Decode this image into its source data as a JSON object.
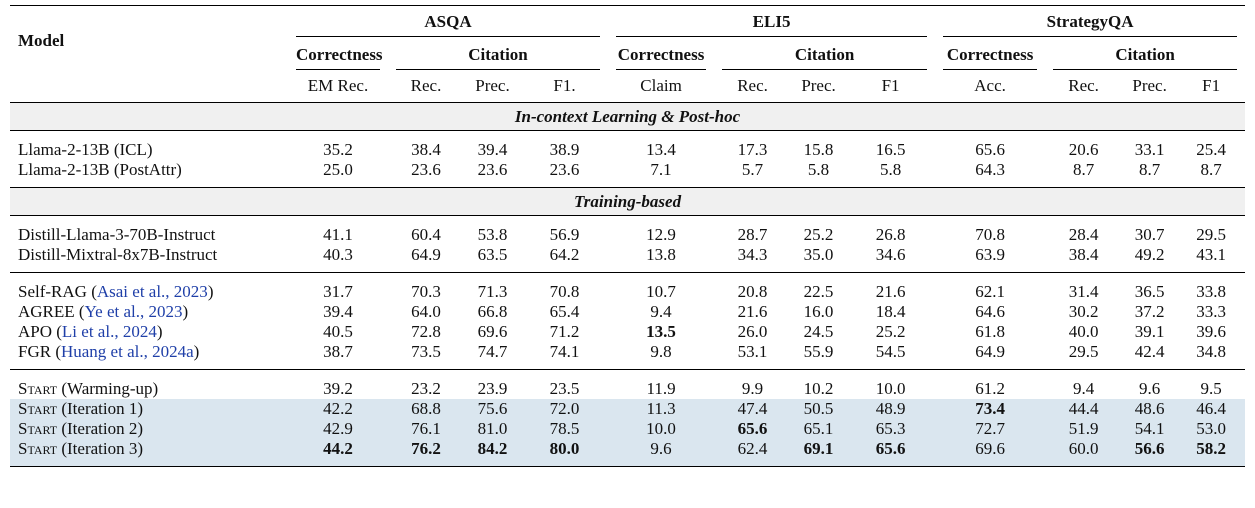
{
  "table": {
    "header": {
      "model": "Model",
      "datasets": [
        {
          "name": "ASQA",
          "correctness": "Correctness",
          "citation": "Citation",
          "metrics": [
            "EM Rec.",
            "Rec.",
            "Prec.",
            "F1."
          ]
        },
        {
          "name": "ELI5",
          "correctness": "Correctness",
          "citation": "Citation",
          "metrics": [
            "Claim",
            "Rec.",
            "Prec.",
            "F1"
          ]
        },
        {
          "name": "StrategyQA",
          "correctness": "Correctness",
          "citation": "Citation",
          "metrics": [
            "Acc.",
            "Rec.",
            "Prec.",
            "F1"
          ]
        }
      ]
    },
    "sections": [
      {
        "title": "In-context Learning & Post-hoc",
        "groups": [
          {
            "rows": [
              {
                "model": [
                  {
                    "text": "Llama-2-13B (ICL)"
                  }
                ],
                "values": [
                  "35.2",
                  "38.4",
                  "39.4",
                  "38.9",
                  "13.4",
                  "17.3",
                  "15.8",
                  "16.5",
                  "65.6",
                  "20.6",
                  "33.1",
                  "25.4"
                ],
                "bold": [],
                "highlight": false
              },
              {
                "model": [
                  {
                    "text": "Llama-2-13B (PostAttr)"
                  }
                ],
                "values": [
                  "25.0",
                  "23.6",
                  "23.6",
                  "23.6",
                  "7.1",
                  "5.7",
                  "5.8",
                  "5.8",
                  "64.3",
                  "8.7",
                  "8.7",
                  "8.7"
                ],
                "bold": [],
                "highlight": false
              }
            ]
          }
        ]
      },
      {
        "title": "Training-based",
        "groups": [
          {
            "rows": [
              {
                "model": [
                  {
                    "text": "Distill-Llama-3-70B-Instruct"
                  }
                ],
                "values": [
                  "41.1",
                  "60.4",
                  "53.8",
                  "56.9",
                  "12.9",
                  "28.7",
                  "25.2",
                  "26.8",
                  "70.8",
                  "28.4",
                  "30.7",
                  "29.5"
                ],
                "bold": [],
                "highlight": false
              },
              {
                "model": [
                  {
                    "text": "Distill-Mixtral-8x7B-Instruct"
                  }
                ],
                "values": [
                  "40.3",
                  "64.9",
                  "63.5",
                  "64.2",
                  "13.8",
                  "34.3",
                  "35.0",
                  "34.6",
                  "63.9",
                  "38.4",
                  "49.2",
                  "43.1"
                ],
                "bold": [],
                "highlight": false
              }
            ]
          },
          {
            "rows": [
              {
                "model": [
                  {
                    "text": "Self-RAG ("
                  },
                  {
                    "text": "Asai et al., 2023",
                    "style": "cite"
                  },
                  {
                    "text": ")"
                  }
                ],
                "values": [
                  "31.7",
                  "70.3",
                  "71.3",
                  "70.8",
                  "10.7",
                  "20.8",
                  "22.5",
                  "21.6",
                  "62.1",
                  "31.4",
                  "36.5",
                  "33.8"
                ],
                "bold": [],
                "highlight": false
              },
              {
                "model": [
                  {
                    "text": "AGREE ("
                  },
                  {
                    "text": "Ye et al., 2023",
                    "style": "cite"
                  },
                  {
                    "text": ")"
                  }
                ],
                "values": [
                  "39.4",
                  "64.0",
                  "66.8",
                  "65.4",
                  "9.4",
                  "21.6",
                  "16.0",
                  "18.4",
                  "64.6",
                  "30.2",
                  "37.2",
                  "33.3"
                ],
                "bold": [],
                "highlight": false
              },
              {
                "model": [
                  {
                    "text": "APO ("
                  },
                  {
                    "text": "Li et al., 2024",
                    "style": "cite"
                  },
                  {
                    "text": ")"
                  }
                ],
                "values": [
                  "40.5",
                  "72.8",
                  "69.6",
                  "71.2",
                  "13.5",
                  "26.0",
                  "24.5",
                  "25.2",
                  "61.8",
                  "40.0",
                  "39.1",
                  "39.6"
                ],
                "bold": [
                  4
                ],
                "highlight": false
              },
              {
                "model": [
                  {
                    "text": "FGR ("
                  },
                  {
                    "text": "Huang et al., 2024a",
                    "style": "cite"
                  },
                  {
                    "text": ")"
                  }
                ],
                "values": [
                  "38.7",
                  "73.5",
                  "74.7",
                  "74.1",
                  "9.8",
                  "53.1",
                  "55.9",
                  "54.5",
                  "64.9",
                  "29.5",
                  "42.4",
                  "34.8"
                ],
                "bold": [],
                "highlight": false
              }
            ]
          },
          {
            "rows": [
              {
                "model": [
                  {
                    "text": "Start",
                    "style": "smallcaps"
                  },
                  {
                    "text": " (Warming-up)"
                  }
                ],
                "values": [
                  "39.2",
                  "23.2",
                  "23.9",
                  "23.5",
                  "11.9",
                  "9.9",
                  "10.2",
                  "10.0",
                  "61.2",
                  "9.4",
                  "9.6",
                  "9.5"
                ],
                "bold": [],
                "highlight": false
              },
              {
                "model": [
                  {
                    "text": "Start",
                    "style": "smallcaps"
                  },
                  {
                    "text": " (Iteration 1)"
                  }
                ],
                "values": [
                  "42.2",
                  "68.8",
                  "75.6",
                  "72.0",
                  "11.3",
                  "47.4",
                  "50.5",
                  "48.9",
                  "73.4",
                  "44.4",
                  "48.6",
                  "46.4"
                ],
                "bold": [
                  8
                ],
                "highlight": true
              },
              {
                "model": [
                  {
                    "text": "Start",
                    "style": "smallcaps"
                  },
                  {
                    "text": " (Iteration 2)"
                  }
                ],
                "values": [
                  "42.9",
                  "76.1",
                  "81.0",
                  "78.5",
                  "10.0",
                  "65.6",
                  "65.1",
                  "65.3",
                  "72.7",
                  "51.9",
                  "54.1",
                  "53.0"
                ],
                "bold": [
                  5
                ],
                "highlight": true
              },
              {
                "model": [
                  {
                    "text": "Start",
                    "style": "smallcaps"
                  },
                  {
                    "text": " (Iteration 3)"
                  }
                ],
                "values": [
                  "44.2",
                  "76.2",
                  "84.2",
                  "80.0",
                  "9.6",
                  "62.4",
                  "69.1",
                  "65.6",
                  "69.6",
                  "60.0",
                  "56.6",
                  "58.2"
                ],
                "bold": [
                  0,
                  1,
                  2,
                  3,
                  6,
                  7,
                  10,
                  11
                ],
                "highlight": true
              }
            ]
          }
        ]
      }
    ]
  }
}
